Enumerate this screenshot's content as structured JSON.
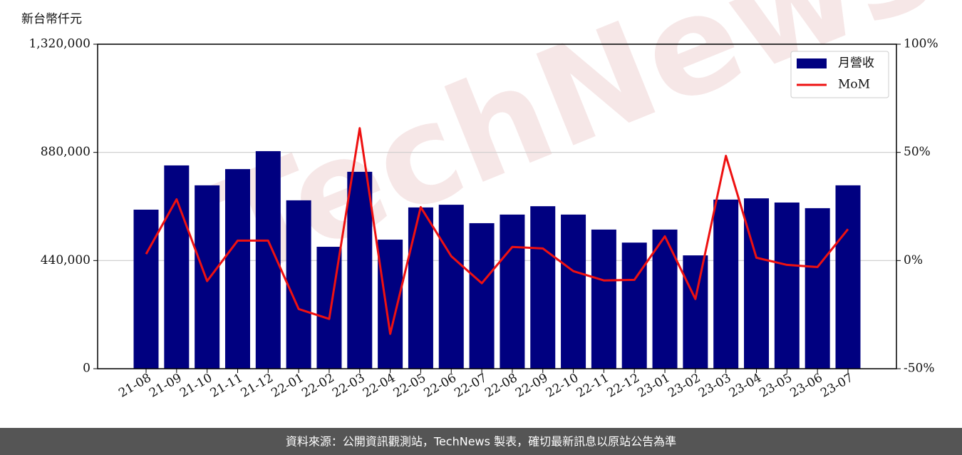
{
  "chart_data": {
    "type": "bar_line",
    "y_label": "新台幣仟元",
    "watermark": "TechNews",
    "source": "資料來源：公開資訊觀測站，TechNews 製表，確切最新訊息以原站公告為準",
    "categories": [
      "21-08",
      "21-09",
      "21-10",
      "21-11",
      "21-12",
      "22-01",
      "22-02",
      "22-03",
      "22-04",
      "22-05",
      "22-06",
      "22-07",
      "22-08",
      "22-09",
      "22-10",
      "22-11",
      "22-12",
      "23-01",
      "23-02",
      "23-03",
      "23-04",
      "23-05",
      "23-06",
      "23-07"
    ],
    "series": [
      {
        "name": "月營收",
        "type": "bar",
        "color": "#000080",
        "values": [
          647000,
          827000,
          746000,
          812000,
          885000,
          685000,
          496000,
          801000,
          525000,
          656000,
          667000,
          592000,
          627000,
          661000,
          627000,
          566000,
          513000,
          566000,
          461000,
          688000,
          693000,
          676000,
          653000,
          746000
        ]
      },
      {
        "name": "MoM",
        "type": "line",
        "color": "#ee1111",
        "axis": "y2",
        "values": [
          3.0,
          28.3,
          -9.5,
          9.2,
          9.2,
          -22.4,
          -27.0,
          61.2,
          -33.9,
          24.7,
          2.0,
          -10.5,
          6.3,
          5.6,
          -4.9,
          -9.2,
          -8.9,
          11.2,
          -17.8,
          48.4,
          1.3,
          -2.0,
          -3.0,
          14.5
        ]
      }
    ],
    "ylim": [
      0,
      1320000
    ],
    "yticks": [
      0,
      {
        "value": 440000,
        "label": "440,000"
      },
      {
        "value": 880000,
        "label": "880,000"
      },
      {
        "value": 1320000,
        "label": "1,320,000"
      }
    ],
    "y2lim": [
      -50,
      100
    ],
    "y2ticks": [
      {
        "value": -50,
        "label": "-50%"
      },
      {
        "value": 0,
        "label": "0%"
      },
      {
        "value": 50,
        "label": "50%"
      },
      {
        "value": 100,
        "label": "100%"
      }
    ],
    "grid": true,
    "legend": "upper right"
  }
}
